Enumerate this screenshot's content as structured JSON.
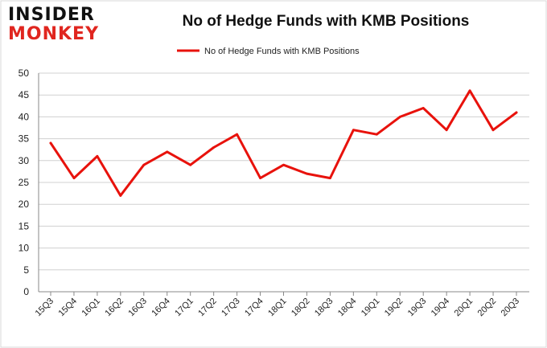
{
  "brand": {
    "line1": "INSIDER",
    "line2": "MONKEY"
  },
  "chart_data": {
    "type": "line",
    "title": "No of Hedge Funds with KMB Positions",
    "xlabel": "",
    "ylabel": "",
    "categories": [
      "15Q3",
      "15Q4",
      "16Q1",
      "16Q2",
      "16Q3",
      "16Q4",
      "17Q1",
      "17Q2",
      "17Q3",
      "17Q4",
      "18Q1",
      "18Q2",
      "18Q3",
      "18Q4",
      "19Q1",
      "19Q2",
      "19Q3",
      "19Q4",
      "20Q1",
      "20Q2",
      "20Q3"
    ],
    "series": [
      {
        "name": "No of Hedge Funds with KMB Positions",
        "color": "#e8120c",
        "values": [
          34,
          26,
          31,
          22,
          29,
          32,
          29,
          33,
          36,
          26,
          29,
          27,
          26,
          37,
          36,
          40,
          42,
          37,
          46,
          37,
          41
        ]
      }
    ],
    "ylim": [
      0,
      50
    ],
    "yticks": [
      0,
      5,
      10,
      15,
      20,
      25,
      30,
      35,
      40,
      45,
      50
    ],
    "grid": true,
    "legend": "top-center"
  }
}
